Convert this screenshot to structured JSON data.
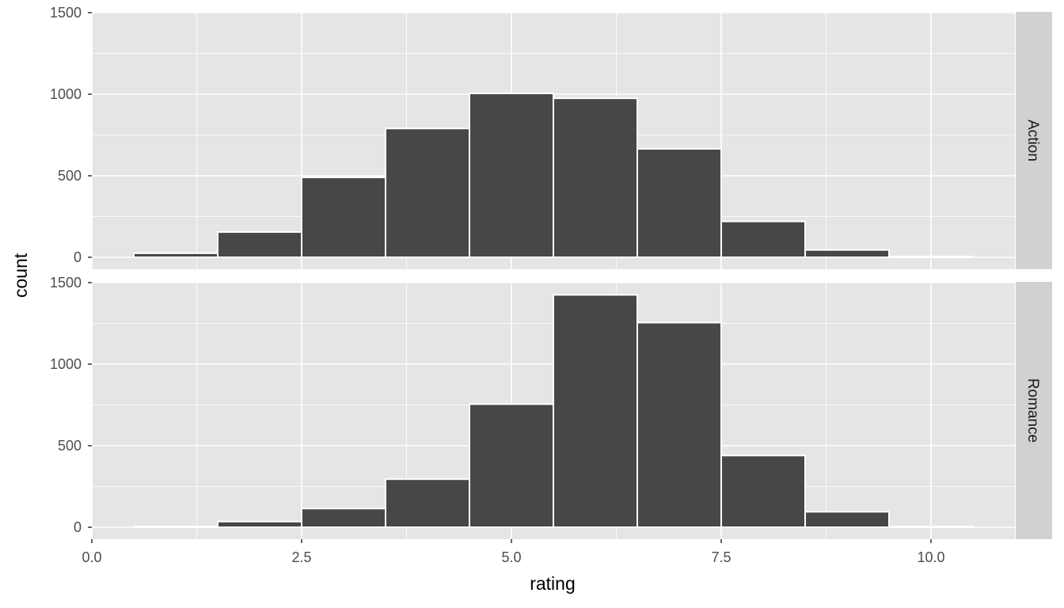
{
  "chart_data": {
    "type": "bar",
    "subtype": "faceted-histogram",
    "xlabel": "rating",
    "ylabel": "count",
    "xlim": [
      0,
      11
    ],
    "ylim": [
      0,
      1500
    ],
    "x_ticks": [
      0,
      2.5,
      5,
      7.5,
      10
    ],
    "x_tick_labels": [
      "0.0",
      "2.5",
      "5.0",
      "7.5",
      "10.0"
    ],
    "y_ticks": [
      0,
      500,
      1000,
      1500
    ],
    "y_tick_labels": [
      "0",
      "500",
      "1000",
      "1500"
    ],
    "bin_width": 1,
    "bin_centers": [
      1,
      2,
      3,
      4,
      5,
      6,
      7,
      8,
      9,
      10
    ],
    "grid": true,
    "colors": {
      "bar_fill": "#474747",
      "bar_stroke": "#ffffff",
      "panel_bg": "#e5e5e5",
      "strip_bg": "#d1d1d1",
      "grid": "#ffffff"
    },
    "facets": [
      {
        "label": "Action",
        "values": [
          25,
          155,
          490,
          790,
          1005,
          975,
          665,
          220,
          45,
          5
        ]
      },
      {
        "label": "Romance",
        "values": [
          5,
          35,
          115,
          295,
          755,
          1425,
          1255,
          440,
          95,
          5
        ]
      }
    ]
  }
}
